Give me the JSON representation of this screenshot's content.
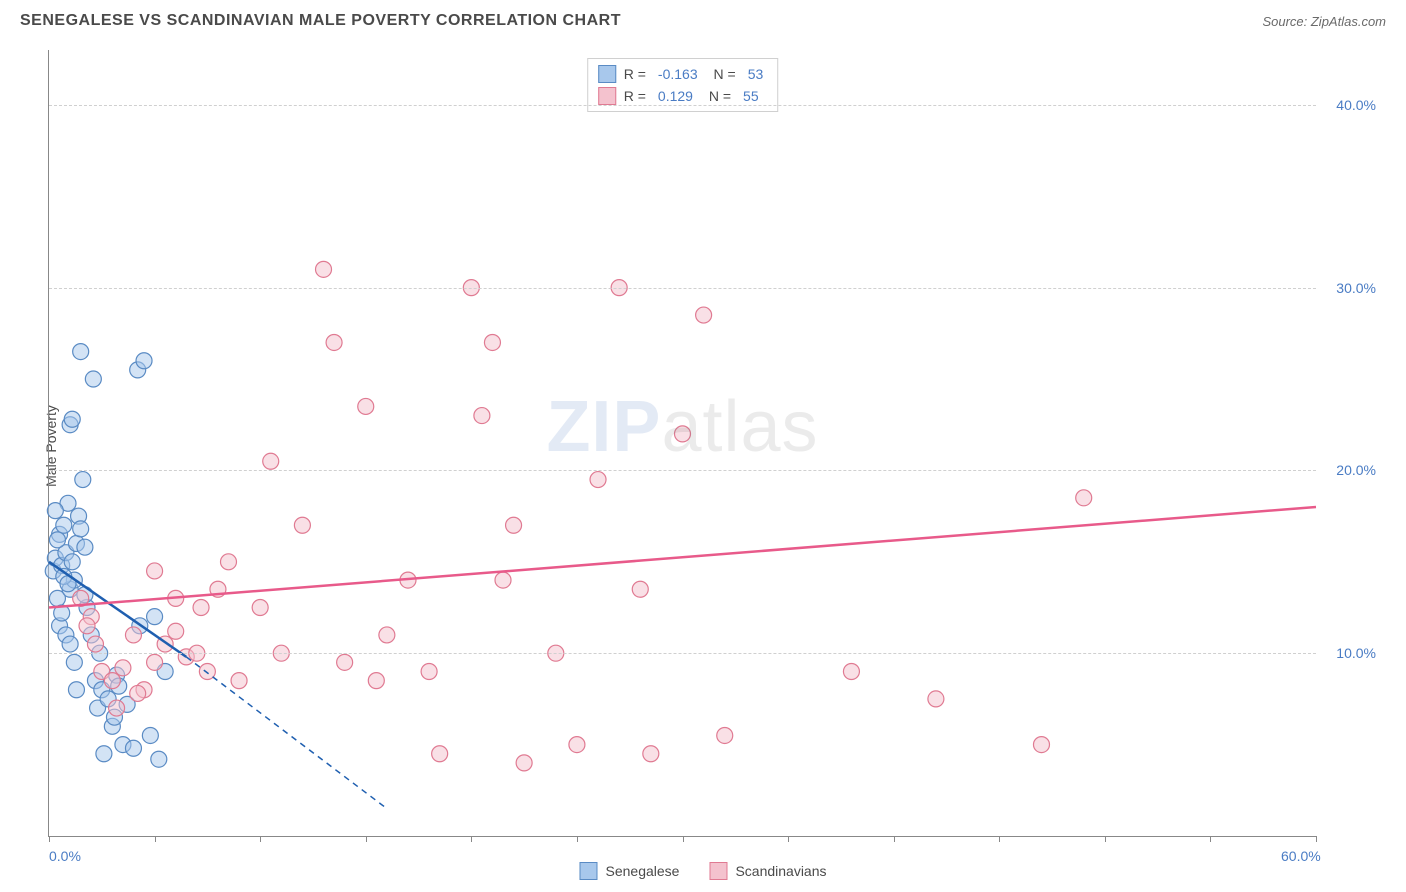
{
  "title": "SENEGALESE VS SCANDINAVIAN MALE POVERTY CORRELATION CHART",
  "source": "Source: ZipAtlas.com",
  "ylabel": "Male Poverty",
  "watermark_bold": "ZIP",
  "watermark_rest": "atlas",
  "chart": {
    "type": "scatter",
    "xlim": [
      0,
      60
    ],
    "ylim": [
      0,
      43
    ],
    "x_ticks": [
      0,
      5,
      10,
      15,
      20,
      25,
      30,
      35,
      40,
      45,
      50,
      55,
      60
    ],
    "x_labels_shown": {
      "0": "0.0%",
      "60": "60.0%"
    },
    "y_gridlines": [
      10,
      20,
      30,
      40
    ],
    "y_labels": {
      "10": "10.0%",
      "20": "20.0%",
      "30": "30.0%",
      "40": "40.0%"
    },
    "background_color": "#ffffff",
    "grid_color": "#d0d0d0",
    "axis_color": "#888888",
    "label_color": "#4a7cc4",
    "marker_radius": 8,
    "marker_opacity": 0.5,
    "series": [
      {
        "name": "Senegalese",
        "fill": "#a8c8ec",
        "stroke": "#5a8bc4",
        "trend_color": "#1f5fb0",
        "R": "-0.163",
        "N": "53",
        "trend": {
          "x1": 0,
          "y1": 15.0,
          "x2": 6.5,
          "y2": 9.8,
          "dash_to_x": 16,
          "dash_to_y": 1.5
        },
        "points": [
          [
            0.2,
            14.5
          ],
          [
            0.3,
            15.2
          ],
          [
            0.4,
            13.0
          ],
          [
            0.5,
            16.5
          ],
          [
            0.6,
            14.8
          ],
          [
            0.7,
            17.0
          ],
          [
            0.8,
            15.5
          ],
          [
            0.9,
            18.2
          ],
          [
            1.0,
            13.5
          ],
          [
            1.0,
            22.5
          ],
          [
            1.1,
            22.8
          ],
          [
            1.2,
            14.0
          ],
          [
            1.3,
            16.0
          ],
          [
            1.4,
            17.5
          ],
          [
            1.5,
            26.5
          ],
          [
            1.6,
            19.5
          ],
          [
            1.7,
            15.8
          ],
          [
            1.8,
            12.5
          ],
          [
            2.0,
            11.0
          ],
          [
            2.1,
            25.0
          ],
          [
            2.2,
            8.5
          ],
          [
            2.3,
            7.0
          ],
          [
            2.5,
            8.0
          ],
          [
            2.6,
            4.5
          ],
          [
            2.8,
            7.5
          ],
          [
            3.0,
            6.0
          ],
          [
            3.2,
            8.8
          ],
          [
            3.3,
            8.2
          ],
          [
            3.5,
            5.0
          ],
          [
            3.7,
            7.2
          ],
          [
            4.0,
            4.8
          ],
          [
            4.2,
            25.5
          ],
          [
            4.5,
            26.0
          ],
          [
            4.8,
            5.5
          ],
          [
            5.0,
            12.0
          ],
          [
            5.2,
            4.2
          ],
          [
            5.5,
            9.0
          ],
          [
            0.5,
            11.5
          ],
          [
            0.6,
            12.2
          ],
          [
            0.8,
            11.0
          ],
          [
            1.0,
            10.5
          ],
          [
            1.2,
            9.5
          ],
          [
            1.3,
            8.0
          ],
          [
            1.5,
            16.8
          ],
          [
            1.7,
            13.2
          ],
          [
            0.3,
            17.8
          ],
          [
            0.4,
            16.2
          ],
          [
            0.7,
            14.2
          ],
          [
            0.9,
            13.8
          ],
          [
            1.1,
            15.0
          ],
          [
            2.4,
            10.0
          ],
          [
            3.1,
            6.5
          ],
          [
            4.3,
            11.5
          ]
        ]
      },
      {
        "name": "Scandinavians",
        "fill": "#f4c2ce",
        "stroke": "#e07a92",
        "trend_color": "#e85a8a",
        "R": "0.129",
        "N": "55",
        "trend": {
          "x1": 0,
          "y1": 12.5,
          "x2": 60,
          "y2": 18.0
        },
        "points": [
          [
            1.5,
            13.0
          ],
          [
            2.0,
            12.0
          ],
          [
            2.5,
            9.0
          ],
          [
            3.0,
            8.5
          ],
          [
            3.5,
            9.2
          ],
          [
            4.0,
            11.0
          ],
          [
            4.5,
            8.0
          ],
          [
            5.0,
            9.5
          ],
          [
            5.5,
            10.5
          ],
          [
            6.0,
            11.2
          ],
          [
            6.5,
            9.8
          ],
          [
            7.0,
            10.0
          ],
          [
            7.5,
            9.0
          ],
          [
            8.0,
            13.5
          ],
          [
            8.5,
            15.0
          ],
          [
            9.0,
            8.5
          ],
          [
            10.0,
            12.5
          ],
          [
            10.5,
            20.5
          ],
          [
            11.0,
            10.0
          ],
          [
            12.0,
            17.0
          ],
          [
            13.0,
            31.0
          ],
          [
            13.5,
            27.0
          ],
          [
            14.0,
            9.5
          ],
          [
            15.0,
            23.5
          ],
          [
            15.5,
            8.5
          ],
          [
            16.0,
            11.0
          ],
          [
            17.0,
            14.0
          ],
          [
            18.0,
            9.0
          ],
          [
            18.5,
            4.5
          ],
          [
            20.0,
            30.0
          ],
          [
            20.5,
            23.0
          ],
          [
            21.0,
            27.0
          ],
          [
            21.5,
            14.0
          ],
          [
            22.0,
            17.0
          ],
          [
            22.5,
            4.0
          ],
          [
            24.0,
            10.0
          ],
          [
            25.0,
            5.0
          ],
          [
            26.0,
            19.5
          ],
          [
            27.0,
            30.0
          ],
          [
            28.0,
            13.5
          ],
          [
            28.5,
            4.5
          ],
          [
            30.0,
            22.0
          ],
          [
            31.0,
            28.5
          ],
          [
            32.0,
            5.5
          ],
          [
            38.0,
            9.0
          ],
          [
            42.0,
            7.5
          ],
          [
            47.0,
            5.0
          ],
          [
            49.0,
            18.5
          ],
          [
            5.0,
            14.5
          ],
          [
            6.0,
            13.0
          ],
          [
            3.2,
            7.0
          ],
          [
            4.2,
            7.8
          ],
          [
            2.2,
            10.5
          ],
          [
            1.8,
            11.5
          ],
          [
            7.2,
            12.5
          ]
        ]
      }
    ]
  },
  "legend_bottom": [
    {
      "label": "Senegalese",
      "fill": "#a8c8ec",
      "stroke": "#5a8bc4"
    },
    {
      "label": "Scandinavians",
      "fill": "#f4c2ce",
      "stroke": "#e07a92"
    }
  ]
}
